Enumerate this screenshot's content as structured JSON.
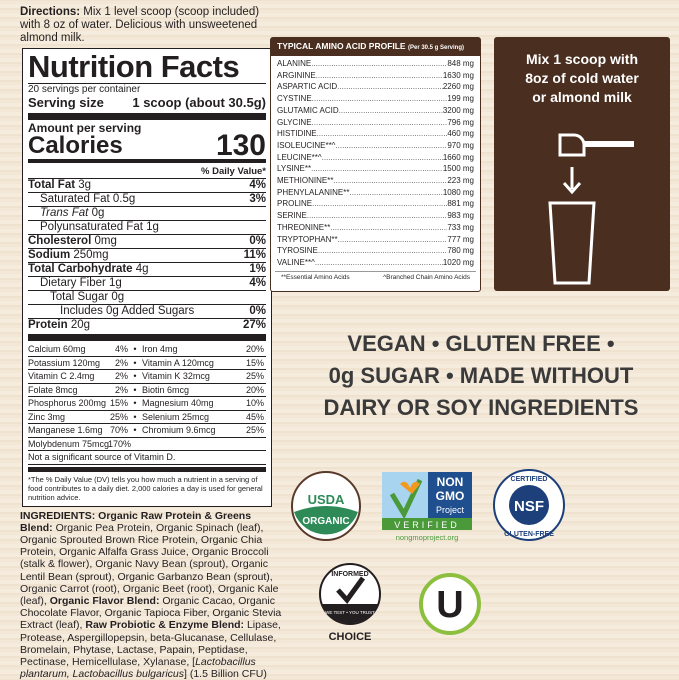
{
  "directions": {
    "label": "Directions:",
    "text": " Mix 1 level scoop (scoop included) with 8 oz of water. Delicious with unsweetened almond milk."
  },
  "nutrition": {
    "title": "Nutrition Facts",
    "servings": "20 servings per container",
    "serving_size_label": "Serving size",
    "serving_size_value": "1 scoop (about 30.5g)",
    "amount_label": "Amount per serving",
    "calories_label": "Calories",
    "calories_value": "130",
    "dv_header": "% Daily Value*",
    "rows": [
      {
        "name": "Total Fat",
        "amt": "3g",
        "dv": "4%",
        "bold": true,
        "indent": 0
      },
      {
        "name": "Saturated Fat",
        "amt": "0.5g",
        "dv": "3%",
        "bold": false,
        "indent": 1
      },
      {
        "name": "Trans Fat",
        "amt": "0g",
        "dv": "",
        "bold": false,
        "indent": 1,
        "italic": true
      },
      {
        "name": "Polyunsaturated Fat",
        "amt": "1g",
        "dv": "",
        "bold": false,
        "indent": 1
      },
      {
        "name": "Cholesterol",
        "amt": "0mg",
        "dv": "0%",
        "bold": true,
        "indent": 0
      },
      {
        "name": "Sodium",
        "amt": "250mg",
        "dv": "11%",
        "bold": true,
        "indent": 0
      },
      {
        "name": "Total Carbohydrate",
        "amt": "4g",
        "dv": "1%",
        "bold": true,
        "indent": 0
      },
      {
        "name": "Dietary Fiber",
        "amt": "1g",
        "dv": "4%",
        "bold": false,
        "indent": 1
      },
      {
        "name": "Total Sugar",
        "amt": "0g",
        "dv": "",
        "bold": false,
        "indent": 2
      },
      {
        "name": "Includes 0g Added Sugars",
        "amt": "",
        "dv": "0%",
        "bold": false,
        "indent": 3
      },
      {
        "name": "Protein",
        "amt": "20g",
        "dv": "27%",
        "bold": true,
        "indent": 0
      }
    ],
    "vitamins": [
      [
        "Calcium 60mg",
        "4%",
        "Iron 4mg",
        "20%"
      ],
      [
        "Potassium 120mg",
        "2%",
        "Vitamin A 120mcg",
        "15%"
      ],
      [
        "Vitamin C 2.4mg",
        "2%",
        "Vitamin K 32mcg",
        "25%"
      ],
      [
        "Folate 8mcg",
        "2%",
        "Biotin 6mcg",
        "20%"
      ],
      [
        "Phosphorus 200mg",
        "15%",
        "Magnesium 40mg",
        "10%"
      ],
      [
        "Zinc 3mg",
        "25%",
        "Selenium 25mcg",
        "45%"
      ],
      [
        "Manganese 1.6mg",
        "70%",
        "Chromium 9.6mcg",
        "25%"
      ],
      [
        "Molybdenum 75mcg",
        "170%",
        "",
        ""
      ]
    ],
    "not_significant": "Not a significant source of Vitamin D.",
    "footnote": "*The % Daily Value (DV) tells you how much a nutrient in a serving of food contributes to a daily diet. 2,000 calories a day is used for general nutrition advice."
  },
  "amino": {
    "title": "TYPICAL AMINO ACID PROFILE",
    "subtitle": "(Per 30.5 g Serving)",
    "rows": [
      [
        "ALANINE",
        "848 mg"
      ],
      [
        "ARGININE",
        "1630 mg"
      ],
      [
        "ASPARTIC ACID",
        "2260 mg"
      ],
      [
        "CYSTINE",
        "199 mg"
      ],
      [
        "GLUTAMIC ACID",
        "3200 mg"
      ],
      [
        "GLYCINE",
        "796 mg"
      ],
      [
        "HISTIDINE",
        "460 mg"
      ],
      [
        "ISOLEUCINE**^",
        "970 mg"
      ],
      [
        "LEUCINE**^",
        "1660 mg"
      ],
      [
        "LYSINE**",
        "1500 mg"
      ],
      [
        "METHIONINE**",
        "223 mg"
      ],
      [
        "PHENYLALANINE**",
        "1080 mg"
      ],
      [
        "PROLINE",
        "881 mg"
      ],
      [
        "SERINE",
        "983 mg"
      ],
      [
        "THREONINE**",
        "733 mg"
      ],
      [
        "TRYPTOPHAN**",
        "777 mg"
      ],
      [
        "TYROSINE",
        "780 mg"
      ],
      [
        "VALINE**^",
        "1020 mg"
      ]
    ],
    "note_essential": "**Essential Amino Acids",
    "note_bcaa": "^Branched Chain Amino Acids"
  },
  "mix": {
    "line1": "Mix 1 scoop with",
    "line2": "8oz of cold water",
    "line3": "or almond milk"
  },
  "claims": {
    "line1": "VEGAN • GLUTEN FREE •",
    "line2": "0g SUGAR • MADE WITHOUT",
    "line3": "DAIRY OR SOY INGREDIENTS"
  },
  "ingredients": {
    "label": "INGREDIENTS:",
    "b1": " Organic Raw Protein & Greens Blend:",
    "t1": " Organic Pea Protein, Organic Spinach (leaf), Organic Sprouted Brown Rice Protein, Organic Chia Protein, Organic Alfalfa Grass Juice, Organic Broccoli (stalk & flower), Organic Navy Bean (sprout), Organic Lentil Bean (sprout), Organic Garbanzo Bean (sprout), Organic Carrot (root), Organic Beet (root), Organic Kale (leaf),",
    "b2": " Organic Flavor Blend:",
    "t2": " Organic Cacao, Organic Chocolate Flavor, Organic Tapioca Fiber, Organic Stevia Extract (leaf),",
    "b3": " Raw Probiotic & Enzyme Blend:",
    "t3": " Lipase, Protease, Aspergillopepsin, beta-Glucanase, Cellulase, Bromelain, Phytase, Lactase, Papain, Peptidase, Pectinase, Hemicellulase, Xylanase, [",
    "i1": "Lactobacillus plantarum, Lactobacillus bulgaricus",
    "t4": "] (1.5 Billion CFU)"
  },
  "logos": {
    "usda_top": "USDA",
    "usda_bottom": "ORGANIC",
    "nongmo_1": "NON",
    "nongmo_2": "GMO",
    "nongmo_3": "Project",
    "nongmo_verified": "VERIFIED",
    "nongmo_url": "nongmoproject.org",
    "nsf_top": "CERTIFIED",
    "nsf_mid": "NSF",
    "nsf_bottom": "GLUTEN-FREE",
    "informed_top": "INFORMED",
    "informed_band": "WE TEST • YOU TRUST",
    "informed_bottom": "CHOICE",
    "kosher": "U"
  },
  "colors": {
    "brown": "#4a2e1f",
    "usda_green": "#2e8b57",
    "nongmo_green": "#4a9a3a",
    "nongmo_blue": "#1f4f8f",
    "nsf_blue": "#1d3f7a",
    "kosher_green": "#8dbf3f"
  }
}
